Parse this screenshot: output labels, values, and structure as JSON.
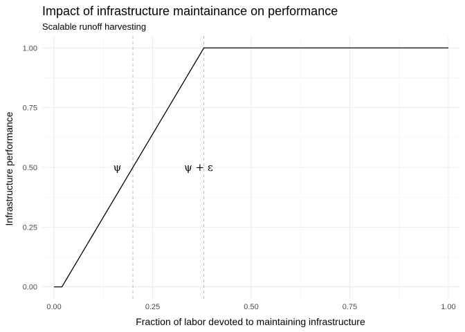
{
  "chart_data": {
    "type": "line",
    "title": "Impact of infrastructure maintainance on performance",
    "subtitle": "Scalable runoff harvesting",
    "xlabel": "Fraction of labor devoted to maintaining infrastructure",
    "ylabel": "Infrastructure performance",
    "xlim": [
      -0.03,
      1.03
    ],
    "ylim": [
      -0.05,
      1.05
    ],
    "x_ticks": [
      0.0,
      0.25,
      0.5,
      0.75,
      1.0
    ],
    "x_tick_labels": [
      "0.00",
      "0.25",
      "0.50",
      "0.75",
      "1.00"
    ],
    "y_ticks": [
      0.0,
      0.25,
      0.5,
      0.75,
      1.0
    ],
    "y_tick_labels": [
      "0.00",
      "0.25",
      "0.50",
      "0.75",
      "1.00"
    ],
    "grid": true,
    "series": [
      {
        "color": "#000000",
        "x": [
          0.0,
          0.02,
          0.38,
          1.0
        ],
        "y": [
          0.0,
          0.0,
          1.0,
          1.0
        ]
      }
    ],
    "vlines": [
      {
        "x": 0.2,
        "style": "dashed",
        "color": "#bdbdbd"
      },
      {
        "x": 0.38,
        "style": "dashed",
        "color": "#bdbdbd"
      }
    ],
    "annotations": [
      {
        "text": "ψ",
        "x": 0.15,
        "y": 0.5
      },
      {
        "text": "ψ + ε",
        "x": 0.33,
        "y": 0.5
      }
    ]
  }
}
